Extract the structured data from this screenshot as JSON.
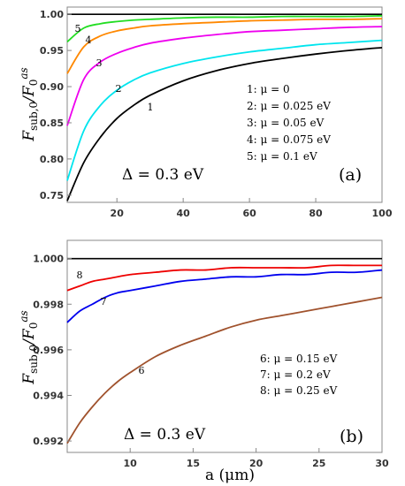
{
  "chart_data": [
    {
      "type": "line",
      "panel_tag": "(a)",
      "ylabel": "F_{sub,0}/F_0^{as}",
      "xlabel": "",
      "xlim": [
        5,
        100
      ],
      "ylim": [
        0.74,
        1.01
      ],
      "x_ticks": [
        20,
        40,
        60,
        80,
        100
      ],
      "x_tick_labels": [
        "20",
        "40",
        "60",
        "80",
        "100"
      ],
      "y_ticks": [
        0.75,
        0.8,
        0.85,
        0.9,
        0.95,
        1.0
      ],
      "y_tick_labels": [
        "0.75",
        "0.80",
        "0.85",
        "0.90",
        "0.95",
        "1.00"
      ],
      "annotation": "Δ = 0.3 eV",
      "legend": [
        "1: μ = 0",
        "2: μ = 0.025 eV",
        "3: μ = 0.05 eV",
        "4: μ = 0.075 eV",
        "5: μ = 0.1 eV"
      ],
      "reference_line": {
        "y": 1.0,
        "color": "#000000"
      },
      "series": [
        {
          "label": "1",
          "color": "#000000",
          "x": [
            5,
            10,
            15,
            20,
            25,
            30,
            40,
            50,
            60,
            70,
            80,
            90,
            100
          ],
          "y": [
            0.742,
            0.795,
            0.83,
            0.856,
            0.874,
            0.888,
            0.908,
            0.922,
            0.932,
            0.939,
            0.945,
            0.95,
            0.954
          ]
        },
        {
          "label": "2",
          "color": "#00e5ee",
          "x": [
            5,
            10,
            15,
            20,
            25,
            30,
            40,
            50,
            60,
            70,
            80,
            90,
            100
          ],
          "y": [
            0.77,
            0.839,
            0.874,
            0.895,
            0.909,
            0.919,
            0.932,
            0.941,
            0.948,
            0.953,
            0.958,
            0.961,
            0.964
          ]
        },
        {
          "label": "3",
          "color": "#ee00ee",
          "x": [
            5,
            10,
            15,
            20,
            25,
            30,
            40,
            50,
            60,
            70,
            80,
            90,
            100
          ],
          "y": [
            0.846,
            0.91,
            0.934,
            0.946,
            0.954,
            0.96,
            0.967,
            0.972,
            0.976,
            0.978,
            0.98,
            0.982,
            0.983
          ]
        },
        {
          "label": "4",
          "color": "#ff8800",
          "x": [
            5,
            10,
            15,
            20,
            25,
            30,
            40,
            50,
            60,
            70,
            80,
            90,
            100
          ],
          "y": [
            0.918,
            0.955,
            0.97,
            0.977,
            0.981,
            0.984,
            0.987,
            0.989,
            0.991,
            0.992,
            0.993,
            0.993,
            0.994
          ]
        },
        {
          "label": "5",
          "color": "#22dd22",
          "x": [
            5,
            10,
            15,
            20,
            25,
            30,
            40,
            50,
            60,
            70,
            80,
            90,
            100
          ],
          "y": [
            0.962,
            0.981,
            0.987,
            0.99,
            0.992,
            0.993,
            0.995,
            0.996,
            0.996,
            0.997,
            0.997,
            0.997,
            0.998
          ]
        }
      ]
    },
    {
      "type": "line",
      "panel_tag": "(b)",
      "ylabel": "F_{sub,0}/F_0^{as}",
      "xlabel": "a (μm)",
      "xlim": [
        5,
        30
      ],
      "ylim": [
        0.9915,
        1.0008
      ],
      "x_ticks": [
        10,
        15,
        20,
        25,
        30
      ],
      "x_tick_labels": [
        "10",
        "15",
        "20",
        "25",
        "30"
      ],
      "y_ticks": [
        0.992,
        0.994,
        0.996,
        0.998,
        1.0
      ],
      "y_tick_labels": [
        "0.992",
        "0.994",
        "0.996",
        "0.998",
        "1.000"
      ],
      "annotation": "Δ = 0.3 eV",
      "legend": [
        "6: μ = 0.15 eV",
        "7: μ = 0.2 eV",
        "8: μ = 0.25 eV"
      ],
      "reference_line": {
        "y": 1.0,
        "color": "#000000"
      },
      "series": [
        {
          "label": "6",
          "color": "#a0522d",
          "x": [
            5,
            6,
            7,
            8,
            9,
            10,
            12,
            14,
            16,
            18,
            20,
            22,
            24,
            26,
            28,
            30
          ],
          "y": [
            0.9919,
            0.9928,
            0.9935,
            0.9941,
            0.9946,
            0.995,
            0.9957,
            0.9962,
            0.9966,
            0.997,
            0.9973,
            0.9975,
            0.9977,
            0.9979,
            0.9981,
            0.9983
          ]
        },
        {
          "label": "7",
          "color": "#0000ee",
          "x": [
            5,
            6,
            7,
            8,
            9,
            10,
            12,
            14,
            16,
            18,
            20,
            22,
            24,
            26,
            28,
            30
          ],
          "y": [
            0.9972,
            0.9977,
            0.998,
            0.9983,
            0.9985,
            0.9986,
            0.9988,
            0.999,
            0.9991,
            0.9992,
            0.9992,
            0.9993,
            0.9993,
            0.9994,
            0.9994,
            0.9995
          ]
        },
        {
          "label": "8",
          "color": "#ee0000",
          "x": [
            5,
            6,
            7,
            8,
            9,
            10,
            12,
            14,
            16,
            18,
            20,
            22,
            24,
            26,
            28,
            30
          ],
          "y": [
            0.9986,
            0.9988,
            0.999,
            0.9991,
            0.9992,
            0.9993,
            0.9994,
            0.9995,
            0.9995,
            0.9996,
            0.9996,
            0.9996,
            0.9996,
            0.9997,
            0.9997,
            0.9997
          ]
        }
      ]
    }
  ]
}
